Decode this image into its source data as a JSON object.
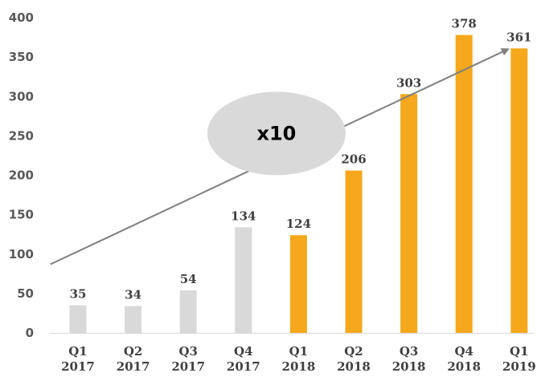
{
  "chart_data": {
    "type": "bar",
    "categories": [
      [
        "Q1",
        "2017"
      ],
      [
        "Q2",
        "2017"
      ],
      [
        "Q3",
        "2017"
      ],
      [
        "Q4",
        "2017"
      ],
      [
        "Q1",
        "2018"
      ],
      [
        "Q2",
        "2018"
      ],
      [
        "Q3",
        "2018"
      ],
      [
        "Q4",
        "2018"
      ],
      [
        "Q1",
        "2019"
      ]
    ],
    "values": [
      35,
      34,
      54,
      134,
      124,
      206,
      303,
      378,
      361
    ],
    "bar_colors": [
      "#d9d9d9",
      "#d9d9d9",
      "#d9d9d9",
      "#d9d9d9",
      "#f5a81c",
      "#f5a81c",
      "#f5a81c",
      "#f5a81c",
      "#f5a81c"
    ],
    "data_labels": [
      "35",
      "34",
      "54",
      "134",
      "124",
      "206",
      "303",
      "378",
      "361"
    ],
    "yticks": [
      0,
      50,
      100,
      150,
      200,
      250,
      300,
      350,
      400
    ],
    "ylim": [
      0,
      400
    ],
    "grid": false,
    "legend": false,
    "annotation": {
      "text": "x10",
      "shape": "ellipse",
      "fill": "#d9d9d9",
      "arrow_color": "#7f7f7f",
      "arrow": {
        "from": [
          -0.5,
          87
        ],
        "to": [
          7.8,
          360
        ]
      },
      "ellipse_center": [
        3.6,
        253
      ]
    }
  }
}
